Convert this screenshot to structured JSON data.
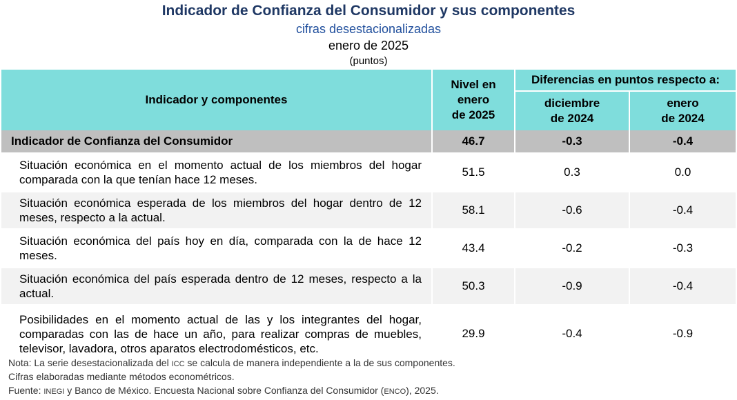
{
  "header": {
    "title": "Indicador de Confianza del Consumidor y sus componentes",
    "subtitle": "cifras desestacionalizadas",
    "date": "enero de 2025",
    "units": "(puntos)"
  },
  "table": {
    "col_indicator": "Indicador y componentes",
    "col_level_line1": "Nivel en",
    "col_level_line2": "enero",
    "col_level_line3": "de 2025",
    "col_diff": "Diferencias en puntos respecto a:",
    "col_diff_dec_line1": "diciembre",
    "col_diff_dec_line2": "de 2024",
    "col_diff_jan_line1": "enero",
    "col_diff_jan_line2": "de 2024",
    "total": {
      "name": "Indicador de Confianza del Consumidor",
      "level": "46.7",
      "dec": "-0.3",
      "jan": "-0.4"
    },
    "rows": [
      {
        "name": "Situación económica en el momento actual de los miembros del hogar comparada con la que tenían hace 12 meses.",
        "level": "51.5",
        "dec": "0.3",
        "jan": "0.0"
      },
      {
        "name": "Situación económica esperada de los miembros del hogar dentro de 12 meses, respecto a la actual.",
        "level": "58.1",
        "dec": "-0.6",
        "jan": "-0.4"
      },
      {
        "name": "Situación económica del país hoy en día, comparada con la de hace 12 meses.",
        "level": "43.4",
        "dec": "-0.2",
        "jan": "-0.3"
      },
      {
        "name": "Situación económica del país esperada dentro de 12 meses, respecto a la actual.",
        "level": "50.3",
        "dec": "-0.9",
        "jan": "-0.4"
      },
      {
        "name": "Posibilidades en el momento actual de las y los integrantes del hogar, comparadas con las de hace un año, para realizar compras de muebles, televisor, lavadora, otros aparatos electrodomésticos, etc.",
        "level": "29.9",
        "dec": "-0.4",
        "jan": "-0.9"
      }
    ]
  },
  "notes": {
    "note1_a": "Nota: La serie desestacionalizada del ",
    "note1_icc": "ICC",
    "note1_b": " se calcula de manera independiente a la de sus componentes.",
    "note2": "Cifras elaboradas mediante métodos econométricos.",
    "source_a": "Fuente: ",
    "source_inegi": "INEGI",
    "source_b": " y Banco de México. Encuesta Nacional sobre Confianza del Consumidor (",
    "source_enco": "ENCO",
    "source_c": "), 2025."
  }
}
